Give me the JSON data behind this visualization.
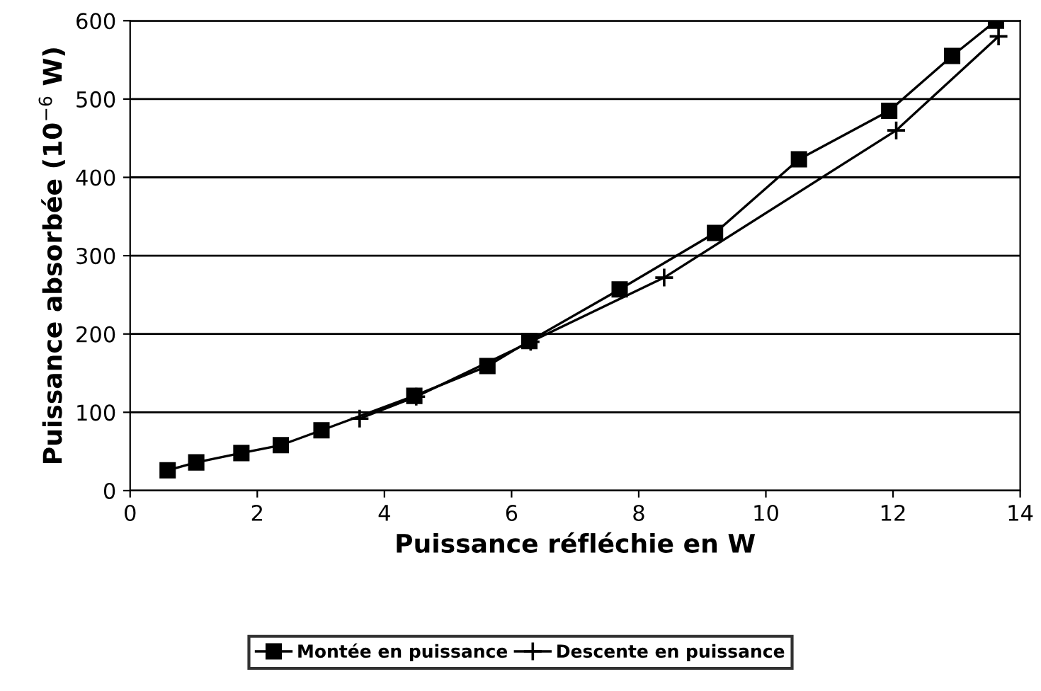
{
  "chart_data": {
    "type": "line",
    "xlabel": "Puissance réfléchie en W",
    "ylabel": "Puissance absorbée (10$^{−6}$ W)",
    "xlim": [
      0,
      14
    ],
    "xticks": [
      0,
      2,
      4,
      6,
      8,
      10,
      12,
      14
    ],
    "ylim": [
      0,
      600
    ],
    "yticks": [
      0,
      100,
      200,
      300,
      400,
      500,
      600
    ],
    "grid": "y",
    "legend": "bottom",
    "line_style": "solid",
    "series": [
      {
        "name": "Montée en puissance",
        "color": "#000000",
        "marker": "square",
        "x": [
          0.59,
          1.04,
          1.75,
          2.37,
          3.01,
          4.47,
          5.62,
          6.28,
          7.7,
          9.2,
          10.52,
          11.94,
          12.93,
          13.62
        ],
        "values": [
          26,
          36,
          48,
          58,
          77,
          121,
          159,
          191,
          257,
          329,
          423,
          485,
          555,
          600
        ]
      },
      {
        "name": "Descente en puissance",
        "color": "#000000",
        "marker": "cross",
        "x": [
          3.61,
          4.5,
          6.3,
          8.4,
          12.05,
          13.66
        ],
        "values": [
          92,
          120,
          190,
          272,
          460,
          580
        ]
      }
    ]
  }
}
